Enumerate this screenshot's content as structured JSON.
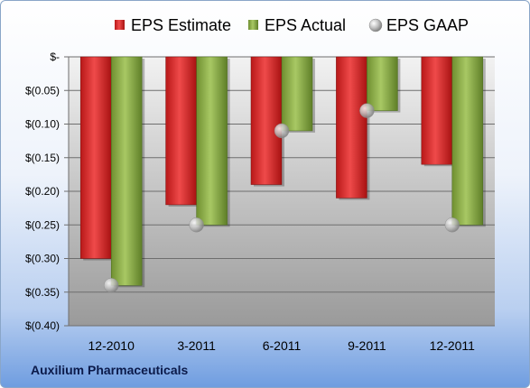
{
  "company": "Auxilium Pharmaceuticals",
  "chart_data": {
    "type": "bar",
    "categories": [
      "12-2010",
      "3-2011",
      "6-2011",
      "9-2011",
      "12-2011"
    ],
    "series": [
      {
        "name": "EPS Estimate",
        "type": "bar",
        "color": "#d42a2a",
        "values": [
          -0.3,
          -0.22,
          -0.19,
          -0.21,
          -0.16
        ]
      },
      {
        "name": "EPS Actual",
        "type": "bar",
        "color": "#8fb04a",
        "values": [
          -0.34,
          -0.25,
          -0.11,
          -0.08,
          -0.25
        ]
      },
      {
        "name": "EPS GAAP",
        "type": "scatter",
        "color": "#b8b8b8",
        "values": [
          -0.34,
          -0.25,
          -0.11,
          -0.08,
          -0.25
        ]
      }
    ],
    "ylim": [
      -0.4,
      0
    ],
    "yticks": [
      {
        "value": 0,
        "label": "$-"
      },
      {
        "value": -0.05,
        "label": "$(0.05)"
      },
      {
        "value": -0.1,
        "label": "$(0.10)"
      },
      {
        "value": -0.15,
        "label": "$(0.15)"
      },
      {
        "value": -0.2,
        "label": "$(0.20)"
      },
      {
        "value": -0.25,
        "label": "$(0.25)"
      },
      {
        "value": -0.3,
        "label": "$(0.30)"
      },
      {
        "value": -0.35,
        "label": "$(0.35)"
      },
      {
        "value": -0.4,
        "label": "$(0.40)"
      }
    ],
    "grid": true,
    "legend": "top"
  }
}
